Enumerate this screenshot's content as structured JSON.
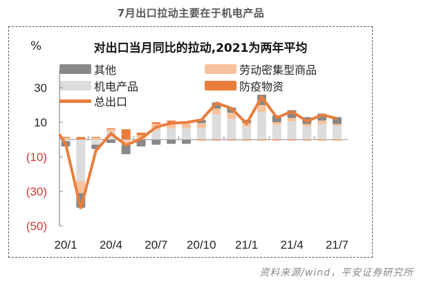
{
  "page_title": "7月出口拉动主要在于机电产品",
  "source": "资料来源/wind，平安证券研究所",
  "colors": {
    "other": "#888888",
    "mechanical": "#dcdcdc",
    "labor": "#f6c39e",
    "epidemic": "#ea7d3c",
    "total_line": "#ea7d3c",
    "negative_tick": "#d9342b",
    "axis": "#888888"
  },
  "chart_data": {
    "type": "bar",
    "subtype": "stacked-bar-with-line",
    "title": "对出口当月同比的拉动,2021为两年平均",
    "ylabel": "%",
    "xlabel": "",
    "ylim": [
      -50,
      30
    ],
    "yticks": [
      30,
      10,
      -10,
      -30,
      -50
    ],
    "ytick_labels": [
      "30",
      "10",
      "(10)",
      "(30)",
      "(50)"
    ],
    "grid": false,
    "legend_position": "top",
    "legend": [
      {
        "key": "other",
        "label": "其他",
        "kind": "bar"
      },
      {
        "key": "labor",
        "label": "劳动密集型商品",
        "kind": "bar"
      },
      {
        "key": "mechanical",
        "label": "机电产品",
        "kind": "bar"
      },
      {
        "key": "epidemic",
        "label": "防疫物资",
        "kind": "bar"
      },
      {
        "key": "total",
        "label": "总出口",
        "kind": "line"
      }
    ],
    "categories": [
      "20/1",
      "20/2",
      "20/3",
      "20/4",
      "20/5",
      "20/6",
      "20/7",
      "20/8",
      "20/9",
      "20/10",
      "20/11",
      "20/12",
      "21/1",
      "21/2",
      "21/3",
      "21/4",
      "21/5",
      "21/6",
      "21/7"
    ],
    "xtick_labels": [
      "20/1",
      "20/4",
      "20/7",
      "20/10",
      "21/1",
      "21/4",
      "21/7"
    ],
    "series": [
      {
        "name": "机电产品",
        "key": "mechanical",
        "values": [
          -1.0,
          -24.0,
          -3.0,
          4.5,
          -0.5,
          0.5,
          5.5,
          6.5,
          6.5,
          6.5,
          14.5,
          12.0,
          7.5,
          16.0,
          8.5,
          10.5,
          7.5,
          9.0,
          8.0
        ]
      },
      {
        "name": "劳动密集型商品",
        "key": "labor",
        "values": [
          1.0,
          -7.0,
          1.0,
          1.5,
          -2.5,
          2.0,
          3.5,
          3.5,
          3.5,
          3.0,
          3.5,
          3.5,
          2.0,
          4.0,
          1.5,
          2.0,
          1.5,
          2.0,
          1.0
        ]
      },
      {
        "name": "防疫物资",
        "key": "epidemic",
        "values": [
          0.5,
          1.5,
          0.5,
          0.5,
          6.0,
          1.5,
          1.0,
          1.0,
          0.5,
          -0.5,
          -0.5,
          -0.5,
          -0.5,
          -0.5,
          -0.5,
          -0.5,
          -0.5,
          -0.5,
          -0.5
        ]
      },
      {
        "name": "其他",
        "key": "other",
        "values": [
          -3.0,
          -8.5,
          -2.5,
          -2.0,
          -5.5,
          -4.0,
          -3.0,
          -2.5,
          -2.5,
          2.0,
          3.5,
          3.0,
          2.0,
          6.0,
          4.0,
          4.5,
          4.0,
          4.0,
          4.0
        ]
      }
    ],
    "line": {
      "name": "总出口",
      "key": "total",
      "x_start": "19/12",
      "start_value": 3.0,
      "values": [
        -2.5,
        -40.0,
        -6.5,
        3.5,
        -3.3,
        0.5,
        7.2,
        9.5,
        9.9,
        11.4,
        21.1,
        18.1,
        9.2,
        24.7,
        12.7,
        16.2,
        10.6,
        14.3,
        12.2
      ]
    }
  }
}
